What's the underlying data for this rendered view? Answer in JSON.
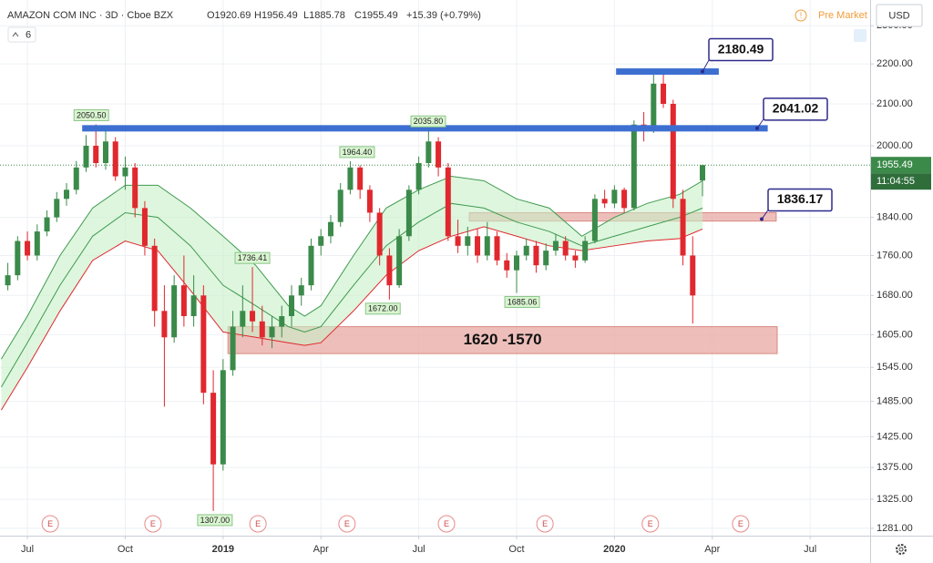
{
  "chart_data": {
    "type": "candlestick",
    "header": {
      "symbol": "AMAZON COM INC · 3D · Cboe BZX",
      "open": "O1920.69",
      "high": "H1956.49",
      "low": "L1885.78",
      "close": "C1955.49",
      "change": "+15.39 (+0.79%)",
      "interval_badge": "6",
      "session": "Pre Market",
      "currency": "USD"
    },
    "log_scale": true,
    "grid": true,
    "xlim": [
      -0.84,
      25.84
    ],
    "xticks": [
      {
        "value": 0,
        "label": "Jul"
      },
      {
        "value": 3,
        "label": "Oct"
      },
      {
        "value": 6,
        "label": "2019"
      },
      {
        "value": 9,
        "label": "Apr"
      },
      {
        "value": 12,
        "label": "Jul"
      },
      {
        "value": 15,
        "label": "Oct"
      },
      {
        "value": 18,
        "label": "2020"
      },
      {
        "value": 21,
        "label": "Apr"
      },
      {
        "value": 24,
        "label": "Jul"
      }
    ],
    "ylim": [
      1270,
      2370
    ],
    "yticks": [
      {
        "value": 1281,
        "label": "1281.00"
      },
      {
        "value": 1325,
        "label": "1325.00"
      },
      {
        "value": 1375,
        "label": "1375.00"
      },
      {
        "value": 1425,
        "label": "1425.00"
      },
      {
        "value": 1485,
        "label": "1485.00"
      },
      {
        "value": 1545,
        "label": "1545.00"
      },
      {
        "value": 1605,
        "label": "1605.00"
      },
      {
        "value": 1680,
        "label": "1680.00"
      },
      {
        "value": 1760,
        "label": "1760.00"
      },
      {
        "value": 1840,
        "label": "1840.00"
      },
      {
        "value": 2000,
        "label": "2000.00"
      },
      {
        "value": 2100,
        "label": "2100.00"
      },
      {
        "value": 2200,
        "label": "2200.00"
      },
      {
        "value": 2300,
        "label": "2300.00"
      }
    ],
    "up_color": "#3b8a4a",
    "down_color": "#e0282e",
    "candles": {
      "x": [
        -0.6,
        -0.3,
        0.0,
        0.3,
        0.6,
        0.9,
        1.2,
        1.5,
        1.8,
        2.1,
        2.4,
        2.7,
        3.0,
        3.3,
        3.6,
        3.9,
        4.2,
        4.5,
        4.8,
        5.1,
        5.4,
        5.7,
        6.0,
        6.3,
        6.6,
        6.9,
        7.2,
        7.5,
        7.8,
        8.1,
        8.4,
        8.7,
        9.0,
        9.3,
        9.6,
        9.9,
        10.2,
        10.5,
        10.8,
        11.1,
        11.4,
        11.7,
        12.0,
        12.3,
        12.6,
        12.9,
        13.2,
        13.5,
        13.8,
        14.1,
        14.4,
        14.7,
        15.0,
        15.3,
        15.6,
        15.9,
        16.2,
        16.5,
        16.8,
        17.1,
        17.4,
        17.7,
        18.0,
        18.3,
        18.6,
        18.9,
        19.2,
        19.5,
        19.8,
        20.1,
        20.4,
        20.7
      ],
      "open": [
        1700,
        1720,
        1790,
        1760,
        1810,
        1840,
        1880,
        1900,
        1950,
        2000,
        1960,
        2010,
        1930,
        1950,
        1860,
        1780,
        1650,
        1600,
        1700,
        1640,
        1680,
        1500,
        1380,
        1540,
        1620,
        1650,
        1630,
        1600,
        1620,
        1640,
        1680,
        1700,
        1780,
        1800,
        1830,
        1900,
        1950,
        1900,
        1850,
        1760,
        1700,
        1800,
        1900,
        1960,
        2010,
        1950,
        1800,
        1780,
        1800,
        1760,
        1800,
        1750,
        1730,
        1760,
        1780,
        1740,
        1770,
        1790,
        1760,
        1750,
        1790,
        1880,
        1870,
        1900,
        1860,
        2050,
        2040,
        2150,
        2100,
        1880,
        1760,
        1920.69
      ],
      "high": [
        1745,
        1800,
        1810,
        1825,
        1855,
        1895,
        1915,
        1965,
        2025,
        2050.5,
        2035,
        2020,
        1975,
        1960,
        1875,
        1795,
        1700,
        1720,
        1760,
        1720,
        1700,
        1540,
        1560,
        1650,
        1700,
        1736.41,
        1660,
        1640,
        1660,
        1700,
        1715,
        1795,
        1815,
        1845,
        1915,
        1964.4,
        1955,
        1910,
        1860,
        1775,
        1815,
        1910,
        1975,
        2035.8,
        2020,
        1960,
        1835,
        1820,
        1815,
        1830,
        1810,
        1765,
        1770,
        1795,
        1790,
        1785,
        1805,
        1800,
        1770,
        1800,
        1890,
        1900,
        1910,
        1905,
        2060,
        2080,
        2185,
        2180,
        2110,
        1900,
        1800,
        1956.49
      ],
      "low": [
        1690,
        1710,
        1750,
        1750,
        1800,
        1830,
        1865,
        1890,
        1940,
        1950,
        1945,
        1920,
        1900,
        1840,
        1760,
        1620,
        1476,
        1590,
        1620,
        1620,
        1480,
        1307,
        1370,
        1530,
        1600,
        1610,
        1585,
        1580,
        1600,
        1620,
        1660,
        1690,
        1760,
        1785,
        1820,
        1890,
        1880,
        1830,
        1740,
        1672,
        1695,
        1790,
        1890,
        1950,
        1930,
        1790,
        1765,
        1760,
        1745,
        1750,
        1740,
        1715,
        1685.06,
        1750,
        1725,
        1730,
        1760,
        1750,
        1735,
        1745,
        1785,
        1860,
        1860,
        1850,
        1855,
        2010,
        2030,
        2090,
        1860,
        1740,
        1626,
        1885.78
      ],
      "close": [
        1720,
        1790,
        1760,
        1810,
        1840,
        1880,
        1900,
        1950,
        2000,
        1960,
        2010,
        1930,
        1950,
        1860,
        1780,
        1650,
        1600,
        1700,
        1640,
        1680,
        1500,
        1380,
        1540,
        1620,
        1650,
        1630,
        1600,
        1620,
        1640,
        1680,
        1700,
        1780,
        1800,
        1830,
        1900,
        1950,
        1900,
        1850,
        1760,
        1700,
        1800,
        1900,
        1960,
        2010,
        1950,
        1800,
        1780,
        1800,
        1760,
        1800,
        1750,
        1730,
        1760,
        1780,
        1740,
        1770,
        1790,
        1760,
        1750,
        1790,
        1880,
        1870,
        1900,
        1860,
        2050,
        2040,
        2150,
        2100,
        1880,
        1760,
        1680,
        1955.49
      ]
    },
    "bands_x": [
      -0.8,
      0,
      1,
      2,
      3,
      4,
      5,
      6,
      7,
      8,
      8.5,
      9,
      10,
      11,
      12,
      13,
      14,
      15,
      16,
      17,
      18,
      19,
      20,
      20.7
    ],
    "bands": [
      {
        "color": "#3f9a4f",
        "values": [
          1560,
          1640,
          1760,
          1860,
          1910,
          1910,
          1860,
          1800,
          1740,
          1660,
          1640,
          1660,
          1760,
          1860,
          1900,
          1930,
          1920,
          1880,
          1860,
          1800,
          1840,
          1870,
          1890,
          1920
        ]
      },
      {
        "color": "#3f9a4f",
        "values": [
          1510,
          1590,
          1700,
          1800,
          1850,
          1840,
          1780,
          1700,
          1660,
          1620,
          1610,
          1620,
          1700,
          1780,
          1830,
          1870,
          1860,
          1830,
          1810,
          1780,
          1800,
          1820,
          1840,
          1860
        ]
      },
      {
        "color": "#e0282e",
        "values": [
          1470,
          1545,
          1650,
          1750,
          1790,
          1770,
          1690,
          1610,
          1600,
          1590,
          1585,
          1590,
          1650,
          1720,
          1770,
          1800,
          1820,
          1800,
          1780,
          1770,
          1780,
          1790,
          1795,
          1815
        ]
      }
    ],
    "band_fill": "#c8f0c8",
    "price_labels": [
      {
        "x": 1.96,
        "value": 2050.5,
        "label": "2050.50",
        "placement": "above"
      },
      {
        "x": 12.29,
        "value": 2035.8,
        "label": "2035.80",
        "placement": "above"
      },
      {
        "x": 10.11,
        "value": 1964.4,
        "label": "1964.40",
        "placement": "above"
      },
      {
        "x": 6.9,
        "value": 1736.41,
        "label": "1736.41",
        "placement": "above"
      },
      {
        "x": 10.9,
        "value": 1672,
        "label": "1672.00",
        "placement": "below"
      },
      {
        "x": 15.17,
        "value": 1685.06,
        "label": "1685.06",
        "placement": "below"
      },
      {
        "x": 5.75,
        "value": 1307,
        "label": "1307.00",
        "placement": "below"
      }
    ],
    "levels": [
      {
        "value": 2180.49,
        "x_from": 18.05,
        "x_to": 21.2,
        "color": "#3d6fd1"
      },
      {
        "value": 2041.02,
        "x_from": 1.68,
        "x_to": 22.7,
        "color": "#3d6fd1"
      }
    ],
    "callouts": [
      2180.49,
      2041.02,
      1836.17
    ],
    "zones": [
      {
        "low": 1570,
        "high": 1620,
        "x_from": 6.15,
        "x_to": 22.99,
        "label": "1620 -1570"
      },
      {
        "low": 1832,
        "high": 1850,
        "x_from": 13.55,
        "x_to": 22.96
      }
    ],
    "zone_color": "#e8a9a3",
    "last_price": 1955.49,
    "countdown": "11:04:55",
    "earnings": {
      "label": "E",
      "x": [
        0.7,
        3.85,
        7.07,
        9.8,
        12.85,
        15.87,
        19.1,
        21.87
      ]
    }
  }
}
